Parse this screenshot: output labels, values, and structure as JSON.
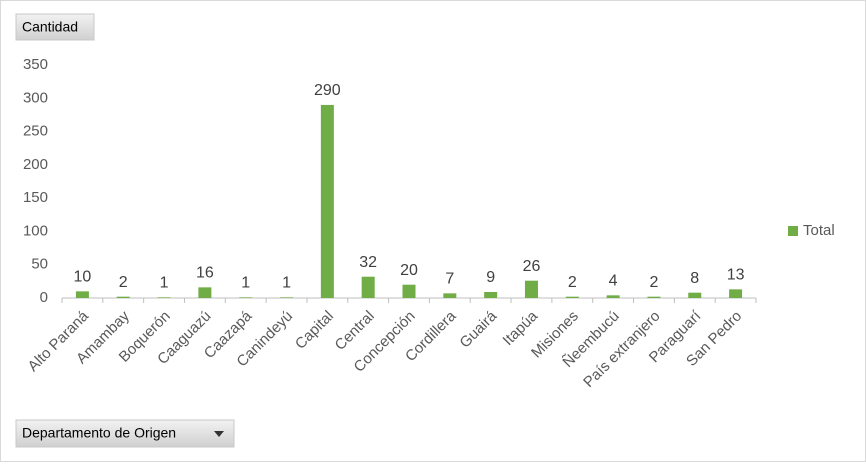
{
  "chart_data": {
    "type": "bar",
    "y_label": "Cantidad",
    "x_label": "Departamento de Origen",
    "categories": [
      "Alto Paraná",
      "Amambay",
      "Boquerón",
      "Caaguazú",
      "Caazapá",
      "Canindeyú",
      "Capital",
      "Central",
      "Concepción",
      "Cordillera",
      "Guairá",
      "Itapúa",
      "Misiones",
      "Ñeembucú",
      "País extranjero",
      "Paraguarí",
      "San Pedro"
    ],
    "series": [
      {
        "name": "Total",
        "color": "#70ad47",
        "values": [
          10,
          2,
          1,
          16,
          1,
          1,
          290,
          32,
          20,
          7,
          9,
          26,
          2,
          4,
          2,
          8,
          13
        ]
      }
    ],
    "ylim": [
      0,
      350
    ],
    "yticks": [
      0,
      50,
      100,
      150,
      200,
      250,
      300,
      350
    ],
    "grid": false,
    "legend": "right"
  }
}
